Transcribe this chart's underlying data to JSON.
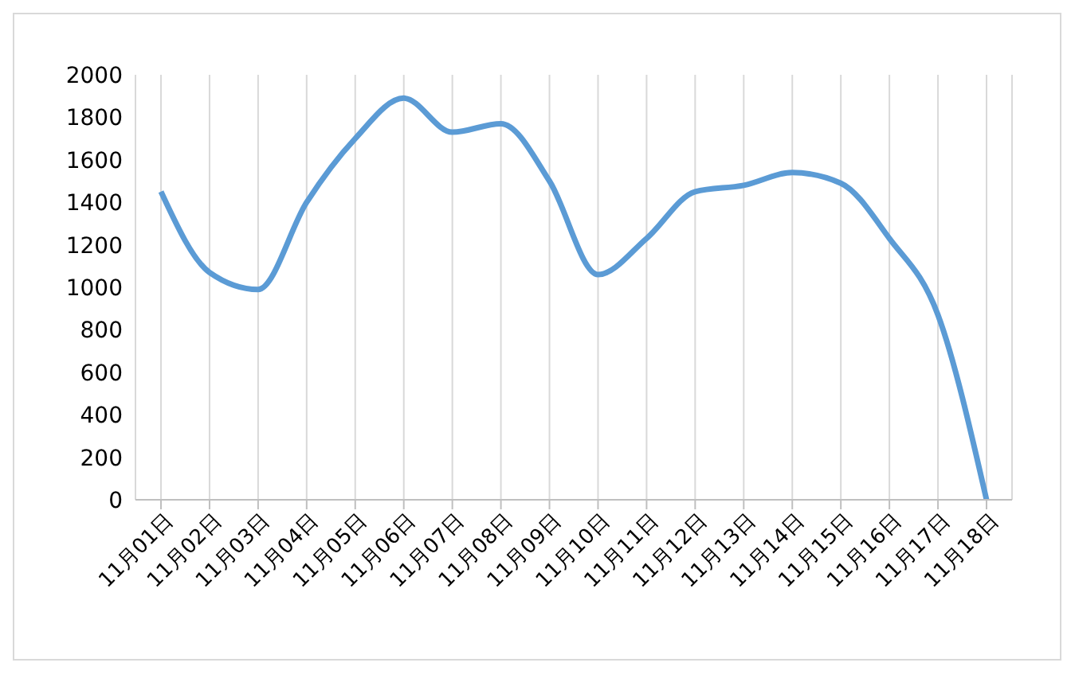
{
  "chart_data": {
    "type": "line",
    "categories": [
      "11月01日",
      "11月02日",
      "11月03日",
      "11月04日",
      "11月05日",
      "11月06日",
      "11月07日",
      "11月08日",
      "11月09日",
      "11月10日",
      "11月11日",
      "11月12日",
      "11月13日",
      "11月14日",
      "11月15日",
      "11月16日",
      "11月17日",
      "11月18日"
    ],
    "series": [
      {
        "color": "#5b9bd5",
        "values": [
          1450,
          1070,
          990,
          1400,
          1700,
          1890,
          1730,
          1770,
          1500,
          1060,
          1230,
          1450,
          1480,
          1540,
          1490,
          1230,
          870,
          0
        ]
      }
    ],
    "ylim": [
      0,
      2000
    ],
    "yticks": [
      0,
      200,
      400,
      600,
      800,
      1000,
      1200,
      1400,
      1600,
      1800,
      2000
    ],
    "grid": "x",
    "legend": false,
    "marker": "none",
    "line_style": "solid"
  }
}
